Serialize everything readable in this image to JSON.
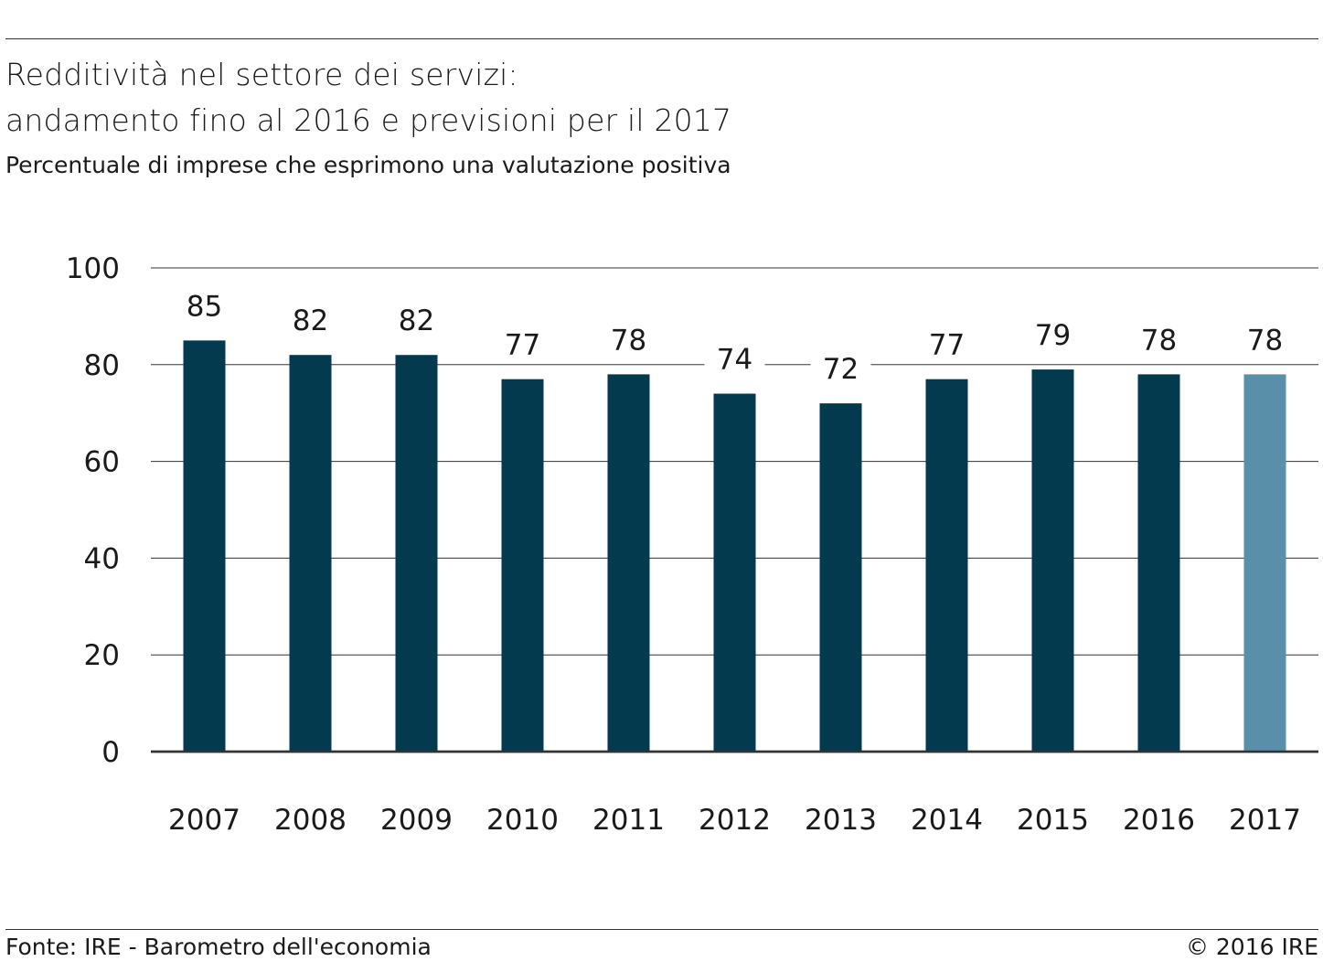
{
  "header": {
    "title_line1": "Redditività nel settore dei servizi:",
    "title_line2": "andamento fino al 2016 e previsioni per il 2017",
    "subtitle": "Percentuale di imprese che esprimono una valutazione positiva"
  },
  "footer": {
    "source": "Fonte: IRE - Barometro dell'economia",
    "copyright": "© 2016 IRE"
  },
  "colors": {
    "bar": "#033a4e",
    "bar_forecast": "#5a8fa9",
    "grid": "#333333"
  },
  "chart_data": {
    "type": "bar",
    "title": "Redditività nel settore dei servizi: andamento fino al 2016 e previsioni per il 2017",
    "subtitle": "Percentuale di imprese che esprimono una valutazione positiva",
    "categories": [
      "2007",
      "2008",
      "2009",
      "2010",
      "2011",
      "2012",
      "2013",
      "2014",
      "2015",
      "2016",
      "2017"
    ],
    "values": [
      85,
      82,
      82,
      77,
      78,
      74,
      72,
      77,
      79,
      78,
      78
    ],
    "value_labels": [
      "85",
      "82",
      "82",
      "77",
      "78",
      "74",
      "72",
      "77",
      "79",
      "78",
      "78"
    ],
    "forecast_categories": [
      "2017"
    ],
    "ylim": [
      0,
      100
    ],
    "yticks": [
      "0",
      "20",
      "40",
      "60",
      "80",
      "100"
    ],
    "xlabel": "",
    "ylabel": "",
    "grid": true,
    "legend": "none"
  }
}
